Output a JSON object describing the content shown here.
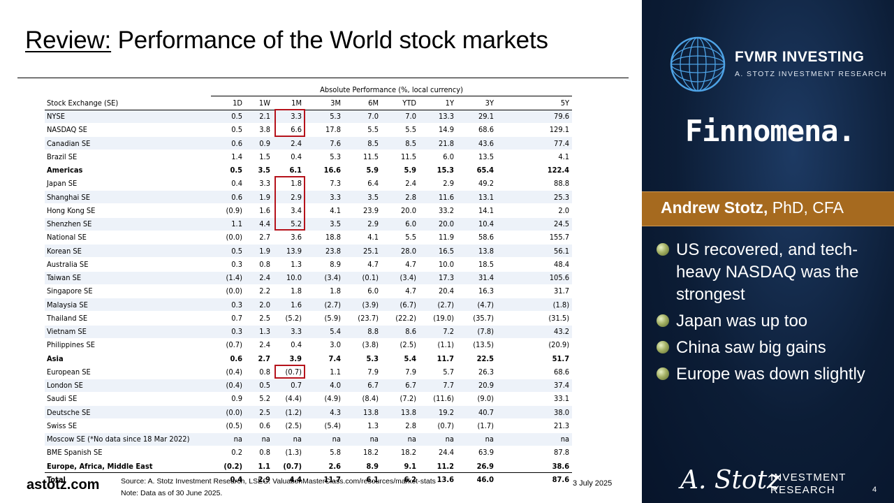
{
  "title": {
    "prefix": "Review:",
    "rest": " Performance of the World stock markets"
  },
  "table": {
    "group_header": "Absolute Performance (%, local currency)",
    "columns": [
      "Stock Exchange (SE)",
      "1D",
      "1W",
      "1M",
      "3M",
      "6M",
      "YTD",
      "1Y",
      "3Y",
      "5Y"
    ],
    "rows": [
      {
        "name": "NYSE",
        "type": "exchange",
        "values": [
          "0.5",
          "2.1",
          "3.3",
          "5.3",
          "7.0",
          "7.0",
          "13.3",
          "29.1",
          "79.6"
        ]
      },
      {
        "name": "NASDAQ SE",
        "type": "exchange",
        "values": [
          "0.5",
          "3.8",
          "6.6",
          "17.8",
          "5.5",
          "5.5",
          "14.9",
          "68.6",
          "129.1"
        ]
      },
      {
        "name": "Canadian SE",
        "type": "exchange",
        "values": [
          "0.6",
          "0.9",
          "2.4",
          "7.6",
          "8.5",
          "8.5",
          "21.8",
          "43.6",
          "77.4"
        ]
      },
      {
        "name": "Brazil SE",
        "type": "exchange",
        "values": [
          "1.4",
          "1.5",
          "0.4",
          "5.3",
          "11.5",
          "11.5",
          "6.0",
          "13.5",
          "4.1"
        ]
      },
      {
        "name": "Americas",
        "type": "region",
        "values": [
          "0.5",
          "3.5",
          "6.1",
          "16.6",
          "5.9",
          "5.9",
          "15.3",
          "65.4",
          "122.4"
        ]
      },
      {
        "name": "Japan SE",
        "type": "exchange",
        "values": [
          "0.4",
          "3.3",
          "1.8",
          "7.3",
          "6.4",
          "2.4",
          "2.9",
          "49.2",
          "88.8"
        ]
      },
      {
        "name": "Shanghai SE",
        "type": "exchange",
        "values": [
          "0.6",
          "1.9",
          "2.9",
          "3.3",
          "3.5",
          "2.8",
          "11.6",
          "13.1",
          "25.3"
        ]
      },
      {
        "name": "Hong Kong SE",
        "type": "exchange",
        "values": [
          "(0.9)",
          "1.6",
          "3.4",
          "4.1",
          "23.9",
          "20.0",
          "33.2",
          "14.1",
          "2.0"
        ]
      },
      {
        "name": "Shenzhen SE",
        "type": "exchange",
        "values": [
          "1.1",
          "4.4",
          "5.2",
          "3.5",
          "2.9",
          "6.0",
          "20.0",
          "10.4",
          "24.5"
        ]
      },
      {
        "name": "National SE",
        "type": "exchange",
        "values": [
          "(0.0)",
          "2.7",
          "3.6",
          "18.8",
          "4.1",
          "5.5",
          "11.9",
          "58.6",
          "155.7"
        ]
      },
      {
        "name": "Korean SE",
        "type": "exchange",
        "values": [
          "0.5",
          "1.9",
          "13.9",
          "23.8",
          "25.1",
          "28.0",
          "16.5",
          "13.8",
          "56.1"
        ]
      },
      {
        "name": "Australia SE",
        "type": "exchange",
        "values": [
          "0.3",
          "0.8",
          "1.3",
          "8.9",
          "4.7",
          "4.7",
          "10.0",
          "18.5",
          "48.4"
        ]
      },
      {
        "name": "Taiwan SE",
        "type": "exchange",
        "values": [
          "(1.4)",
          "2.4",
          "10.0",
          "(3.4)",
          "(0.1)",
          "(3.4)",
          "17.3",
          "31.4",
          "105.6"
        ]
      },
      {
        "name": "Singapore SE",
        "type": "exchange",
        "values": [
          "(0.0)",
          "2.2",
          "1.8",
          "1.8",
          "6.0",
          "4.7",
          "20.4",
          "16.3",
          "31.7"
        ]
      },
      {
        "name": "Malaysia SE",
        "type": "exchange",
        "values": [
          "0.3",
          "2.0",
          "1.6",
          "(2.7)",
          "(3.9)",
          "(6.7)",
          "(2.7)",
          "(4.7)",
          "(1.8)"
        ]
      },
      {
        "name": "Thailand SE",
        "type": "exchange",
        "values": [
          "0.7",
          "2.5",
          "(5.2)",
          "(5.9)",
          "(23.7)",
          "(22.2)",
          "(19.0)",
          "(35.7)",
          "(31.5)"
        ]
      },
      {
        "name": "Vietnam SE",
        "type": "exchange",
        "values": [
          "0.3",
          "1.3",
          "3.3",
          "5.4",
          "8.8",
          "8.6",
          "7.2",
          "(7.8)",
          "43.2"
        ]
      },
      {
        "name": "Philippines SE",
        "type": "exchange",
        "values": [
          "(0.7)",
          "2.4",
          "0.4",
          "3.0",
          "(3.8)",
          "(2.5)",
          "(1.1)",
          "(13.5)",
          "(20.9)"
        ]
      },
      {
        "name": "Asia",
        "type": "region",
        "values": [
          "0.6",
          "2.7",
          "3.9",
          "7.4",
          "5.3",
          "5.4",
          "11.7",
          "22.5",
          "51.7"
        ]
      },
      {
        "name": "European SE",
        "type": "exchange",
        "values": [
          "(0.4)",
          "0.8",
          "(0.7)",
          "1.1",
          "7.9",
          "7.9",
          "5.7",
          "26.3",
          "68.6"
        ]
      },
      {
        "name": "London SE",
        "type": "exchange",
        "values": [
          "(0.4)",
          "0.5",
          "0.7",
          "4.0",
          "6.7",
          "6.7",
          "7.7",
          "20.9",
          "37.4"
        ]
      },
      {
        "name": "Saudi SE",
        "type": "exchange",
        "values": [
          "0.9",
          "5.2",
          "(4.4)",
          "(4.9)",
          "(8.4)",
          "(7.2)",
          "(11.6)",
          "(9.0)",
          "33.1"
        ]
      },
      {
        "name": "Deutsche SE",
        "type": "exchange",
        "values": [
          "(0.0)",
          "2.5",
          "(1.2)",
          "4.3",
          "13.8",
          "13.8",
          "19.2",
          "40.7",
          "38.0"
        ]
      },
      {
        "name": "Swiss SE",
        "type": "exchange",
        "values": [
          "(0.5)",
          "0.6",
          "(2.5)",
          "(5.4)",
          "1.3",
          "2.8",
          "(0.7)",
          "(1.7)",
          "21.3"
        ]
      },
      {
        "name": "Moscow SE (*No data since 18 Mar 2022)",
        "type": "exchange",
        "values": [
          "na",
          "na",
          "na",
          "na",
          "na",
          "na",
          "na",
          "na",
          "na"
        ]
      },
      {
        "name": "BME Spanish SE",
        "type": "exchange",
        "values": [
          "0.2",
          "0.8",
          "(1.3)",
          "5.8",
          "18.2",
          "18.2",
          "24.4",
          "63.9",
          "87.8"
        ]
      },
      {
        "name": "Europe, Africa, Middle East",
        "type": "region",
        "values": [
          "(0.2)",
          "1.1",
          "(0.7)",
          "2.6",
          "8.9",
          "9.1",
          "11.2",
          "26.9",
          "38.6"
        ]
      },
      {
        "name": "Total",
        "type": "total",
        "values": [
          "0.4",
          "2.9",
          "4.4",
          "11.7",
          "6.1",
          "6.2",
          "13.6",
          "46.0",
          "87.6"
        ]
      }
    ],
    "highlight_color": "#b5121b",
    "highlighted_1m_rows": [
      "NYSE",
      "NASDAQ SE",
      "Japan SE",
      "Shanghai SE",
      "Hong Kong SE",
      "Shenzhen SE",
      "European SE"
    ]
  },
  "footer": {
    "site": "astotz.com",
    "source": "Source: A. Stotz Investment Research, LSEG. ValuationMasterClass.com/resources/market-stats",
    "note": "Note: Data as of 30 June 2025.",
    "date": "3 July 2025",
    "page": "4"
  },
  "sidebar": {
    "brand": "FVMR INVESTING",
    "brand_sub": "A. STOTZ INVESTMENT RESEARCH",
    "partner": "Finnomena.",
    "presenter_name": "Andrew Stotz,",
    "presenter_title": " PhD, CFA",
    "bullets": [
      "US recovered, and tech-heavy NASDAQ was the strongest",
      "Japan was up too",
      "China saw big gains",
      "Europe was down slightly"
    ],
    "signature": "A. Stotz",
    "logo_line1": "INVESTMENT",
    "logo_line2": "RESEARCH",
    "colors": {
      "panel": "#0c1d36",
      "name_bar": "#a66a1f",
      "bullet": "#a3b064"
    }
  }
}
